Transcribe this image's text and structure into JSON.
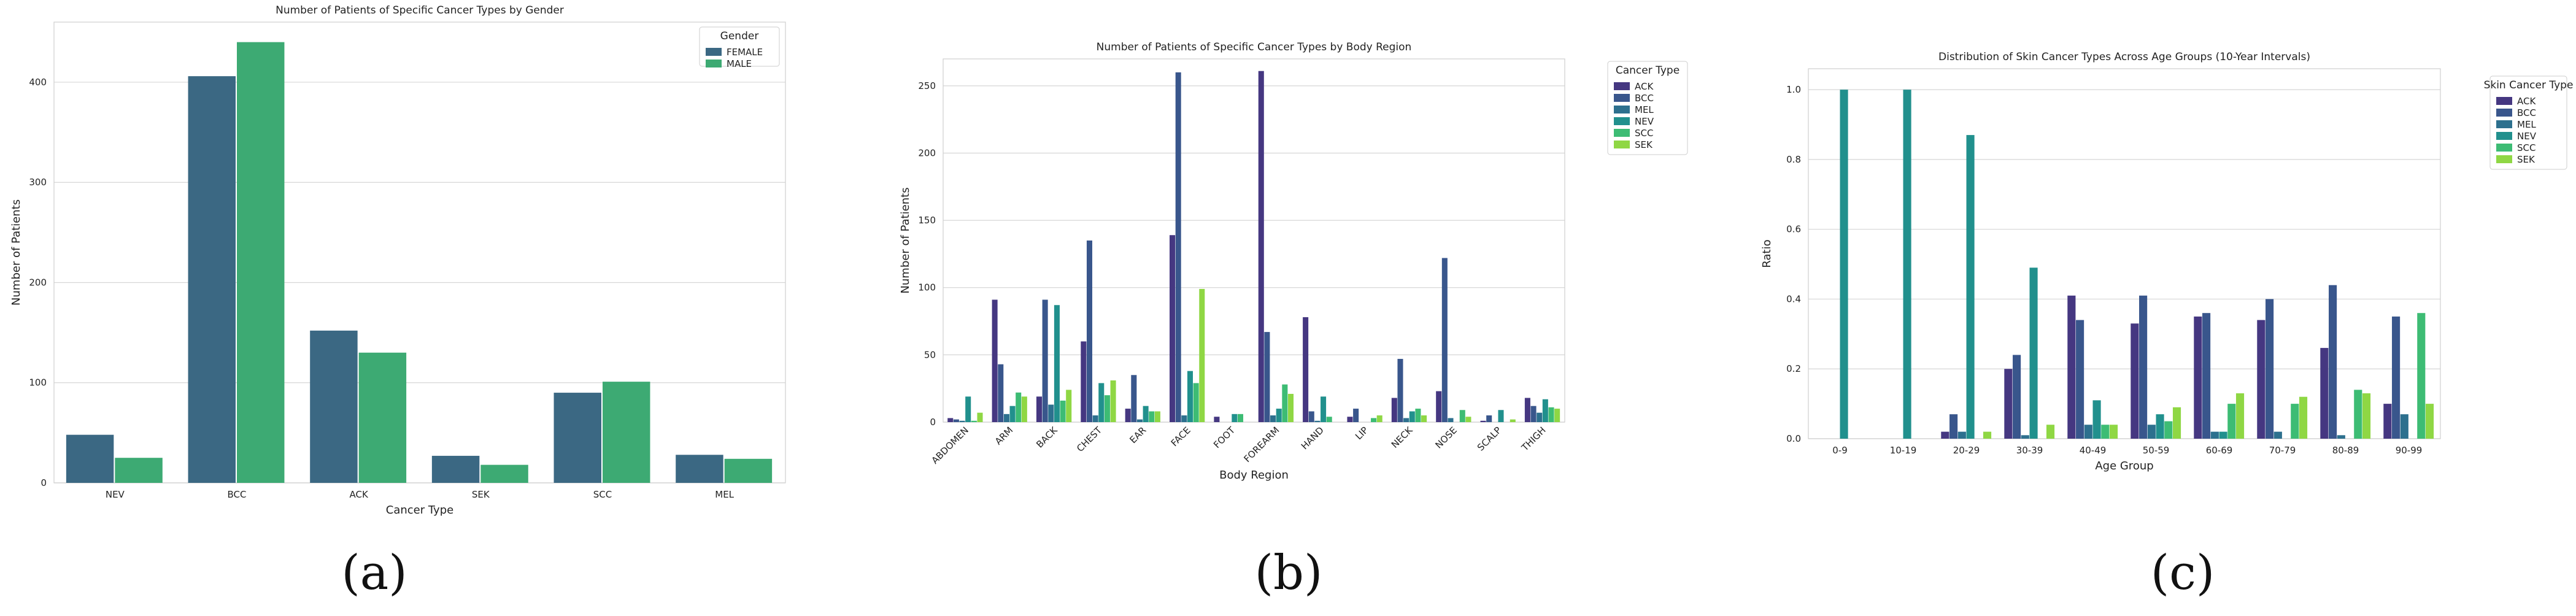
{
  "panel_labels": [
    "(a)",
    "(b)",
    "(c)"
  ],
  "chart_data": [
    {
      "type": "bar",
      "title": "Number of Patients of Specific Cancer Types by Gender",
      "xlabel": "Cancer Type",
      "ylabel": "Number of Patients",
      "ylim": [
        0,
        460
      ],
      "yticks": [
        0,
        100,
        200,
        300,
        400
      ],
      "grid": true,
      "legend_title": "Gender",
      "legend_position": "top-right",
      "categories": [
        "NEV",
        "BCC",
        "ACK",
        "SEK",
        "SCC",
        "MEL"
      ],
      "series": [
        {
          "name": "FEMALE",
          "color": "#3b6883",
          "values": [
            48,
            406,
            152,
            27,
            90,
            28
          ]
        },
        {
          "name": "MALE",
          "color": "#3daa73",
          "values": [
            25,
            440,
            130,
            18,
            101,
            24
          ]
        }
      ]
    },
    {
      "type": "bar",
      "title": "Number of Patients of Specific Cancer Types by Body Region",
      "xlabel": "Body Region",
      "ylabel": "Number of Patients",
      "ylim": [
        0,
        270
      ],
      "yticks": [
        0,
        50,
        100,
        150,
        200,
        250
      ],
      "grid": true,
      "legend_title": "Cancer Type",
      "legend_position": "outside right",
      "categories": [
        "ABDOMEN",
        "ARM",
        "BACK",
        "CHEST",
        "EAR",
        "FACE",
        "FOOT",
        "FOREARM",
        "HAND",
        "LIP",
        "NECK",
        "NOSE",
        "SCALP",
        "THIGH"
      ],
      "series": [
        {
          "name": "ACK",
          "color": "#453781",
          "values": [
            3,
            91,
            19,
            60,
            10,
            139,
            4,
            261,
            78,
            4,
            18,
            23,
            1,
            18
          ]
        },
        {
          "name": "BCC",
          "color": "#39568c",
          "values": [
            2,
            43,
            91,
            135,
            35,
            260,
            0,
            67,
            8,
            10,
            47,
            122,
            5,
            12
          ]
        },
        {
          "name": "MEL",
          "color": "#2d708e",
          "values": [
            1,
            6,
            13,
            5,
            2,
            5,
            0,
            5,
            1,
            0,
            3,
            3,
            0,
            7
          ]
        },
        {
          "name": "NEV",
          "color": "#21908d",
          "values": [
            19,
            12,
            87,
            29,
            12,
            38,
            6,
            10,
            19,
            0,
            8,
            0,
            9,
            17
          ]
        },
        {
          "name": "SCC",
          "color": "#3dbc74",
          "values": [
            1,
            22,
            16,
            20,
            8,
            29,
            6,
            28,
            4,
            3,
            10,
            9,
            0,
            11
          ]
        },
        {
          "name": "SEK",
          "color": "#8fd744",
          "values": [
            7,
            19,
            24,
            31,
            8,
            99,
            0,
            21,
            0,
            5,
            5,
            4,
            2,
            10
          ]
        }
      ]
    },
    {
      "type": "bar",
      "title": "Distribution of Skin Cancer Types Across Age Groups (10-Year Intervals)",
      "xlabel": "Age Group",
      "ylabel": "Ratio",
      "ylim": [
        0,
        1.06
      ],
      "yticks": [
        0.0,
        0.2,
        0.4,
        0.6,
        0.8,
        1.0
      ],
      "grid": true,
      "legend_title": "Skin Cancer Type",
      "legend_position": "outside right",
      "categories": [
        "0-9",
        "10-19",
        "20-29",
        "30-39",
        "40-49",
        "50-59",
        "60-69",
        "70-79",
        "80-89",
        "90-99"
      ],
      "series": [
        {
          "name": "ACK",
          "color": "#453781",
          "values": [
            0,
            0,
            0.02,
            0.2,
            0.41,
            0.33,
            0.35,
            0.34,
            0.26,
            0.1
          ]
        },
        {
          "name": "BCC",
          "color": "#39568c",
          "values": [
            0,
            0,
            0.07,
            0.24,
            0.34,
            0.41,
            0.36,
            0.4,
            0.44,
            0.35
          ]
        },
        {
          "name": "MEL",
          "color": "#2d708e",
          "values": [
            0,
            0,
            0.02,
            0.01,
            0.04,
            0.04,
            0.02,
            0.02,
            0.01,
            0.07
          ]
        },
        {
          "name": "NEV",
          "color": "#21908d",
          "values": [
            1.0,
            1.0,
            0.87,
            0.49,
            0.11,
            0.07,
            0.02,
            0.0,
            0.0,
            0.0
          ]
        },
        {
          "name": "SCC",
          "color": "#3dbc74",
          "values": [
            0,
            0,
            0.0,
            0.0,
            0.04,
            0.05,
            0.1,
            0.1,
            0.14,
            0.36
          ]
        },
        {
          "name": "SEK",
          "color": "#8fd744",
          "values": [
            0,
            0,
            0.02,
            0.04,
            0.04,
            0.09,
            0.13,
            0.12,
            0.13,
            0.1
          ]
        }
      ]
    }
  ]
}
